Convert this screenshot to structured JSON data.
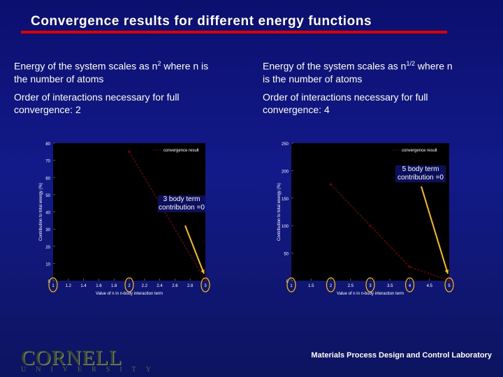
{
  "slide": {
    "title": "Convergence results for different energy functions",
    "left": {
      "line1_a": "Energy of the system scales as n",
      "line1_sup": "2",
      "line1_b": " where n is",
      "line2": "the number of atoms",
      "order1": "Order of interactions necessary for full",
      "order2": "convergence: 2"
    },
    "right": {
      "line1_a": "Energy of the system scales as n",
      "line1_sup": "1/2",
      "line1_b": " where n",
      "line2": "is the number of atoms",
      "order1": "Order of interactions necessary for full",
      "order2": "convergence: 4"
    },
    "footer": "Materials Process Design and Control Laboratory",
    "logo": "CORNELL",
    "logo_sub": "UNIVERSITY"
  },
  "chart_data": [
    {
      "type": "line",
      "legend": "convergence result",
      "xlabel": "Value of n in n-body interaction term",
      "ylabel": "Contribution to total energy (%)",
      "xlim": [
        1,
        3
      ],
      "ylim": [
        0,
        80
      ],
      "xticks": [
        "1",
        "1.2",
        "1.4",
        "1.6",
        "1.8",
        "2",
        "2.2",
        "2.4",
        "2.6",
        "2.8",
        "3"
      ],
      "yticks": [
        "0",
        "10",
        "20",
        "30",
        "40",
        "50",
        "60",
        "70",
        "80"
      ],
      "x": [
        2,
        3
      ],
      "y": [
        75,
        0
      ],
      "annotation": "3 body term contribution =0",
      "colors": {
        "line": "#7a0000",
        "arrow": "#ffc000",
        "circle": "#ffc000"
      }
    },
    {
      "type": "line",
      "legend": "convergence result",
      "xlabel": "Value of n in n-body interaction term",
      "ylabel": "Contribution to total energy (%)",
      "xlim": [
        1,
        5
      ],
      "ylim": [
        0,
        250
      ],
      "xticks": [
        "1",
        "1.5",
        "2",
        "2.5",
        "3",
        "3.5",
        "4",
        "4.5",
        "5"
      ],
      "yticks": [
        "0",
        "50",
        "100",
        "150",
        "200",
        "250"
      ],
      "x": [
        2,
        3,
        4,
        5
      ],
      "y": [
        175,
        100,
        25,
        0
      ],
      "annotation": "5 body term contribution =0",
      "colors": {
        "line": "#7a0000",
        "arrow": "#ffc000",
        "circle": "#ffc000"
      }
    }
  ]
}
